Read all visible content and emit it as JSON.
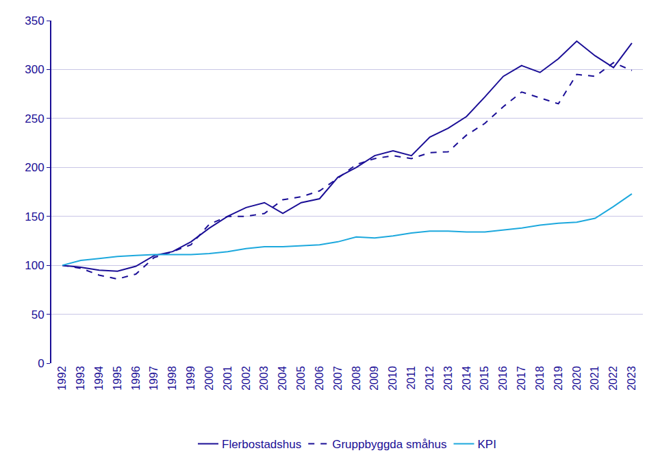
{
  "chart_data": {
    "type": "line",
    "categories": [
      "1992",
      "1993",
      "1994",
      "1995",
      "1996",
      "1997",
      "1998",
      "1999",
      "2000",
      "2001",
      "2002",
      "2003",
      "2004",
      "2005",
      "2006",
      "2007",
      "2008",
      "2009",
      "2010",
      "2011",
      "2012",
      "2013",
      "2014",
      "2015",
      "2016",
      "2017",
      "2018",
      "2019",
      "2020",
      "2021",
      "2022",
      "2023"
    ],
    "series": [
      {
        "name": "Flerbostadshus",
        "color": "#1a0e96",
        "line_style": "solid",
        "values": [
          100,
          98,
          95,
          94,
          99,
          110,
          114,
          124,
          138,
          150,
          159,
          164,
          153,
          164,
          168,
          190,
          200,
          212,
          217,
          212,
          231,
          240,
          252,
          272,
          293,
          304,
          297,
          311,
          329,
          314,
          302,
          327
        ]
      },
      {
        "name": "Gruppbyggda småhus",
        "color": "#1a0e96",
        "line_style": "dash",
        "values": [
          100,
          97,
          90,
          86,
          91,
          108,
          114,
          121,
          142,
          150,
          150,
          153,
          167,
          170,
          176,
          189,
          203,
          209,
          212,
          209,
          215,
          216,
          233,
          245,
          262,
          277,
          271,
          265,
          295,
          293,
          307,
          299
        ]
      },
      {
        "name": "KPI",
        "color": "#1ca8dd",
        "line_style": "solid",
        "values": [
          100,
          105,
          107,
          109,
          110,
          111,
          111,
          111,
          112,
          114,
          117,
          119,
          119,
          120,
          121,
          124,
          129,
          128,
          130,
          133,
          135,
          135,
          134,
          134,
          136,
          138,
          141,
          143,
          144,
          148,
          160,
          173
        ]
      }
    ],
    "ylim": [
      0,
      350
    ],
    "yticks": [
      0,
      50,
      100,
      150,
      200,
      250,
      300,
      350
    ],
    "grid": true,
    "legend": "bottom"
  }
}
